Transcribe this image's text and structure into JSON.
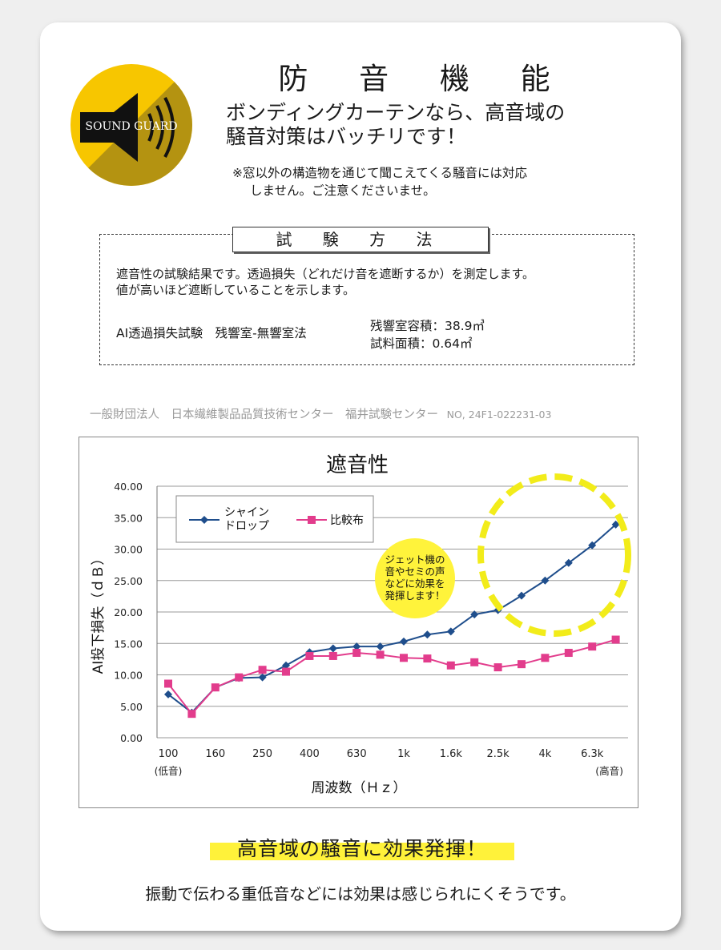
{
  "badge": {
    "text": "SOUND GUARD",
    "color": "#f7c600"
  },
  "header": {
    "title": "防 音 機 能",
    "lead_line1": "ボンディングカーテンなら、高音域の",
    "lead_line2": "騒音対策はバッチリです！",
    "note_line1": "※窓以外の構造物を通じて聞こえてくる騒音には対応",
    "note_line2": "しません。ご注意くださいませ。"
  },
  "method": {
    "label": "試 験 方 法",
    "desc_line1": "遮音性の試験結果です。透過損失（どれだけ音を遮断するか）を測定します。",
    "desc_line2": "値が高いほど遮断していることを示します。",
    "test_name": "AI透過損失試験　残響室-無響室法",
    "spec_line1": "残響室容積：38.9㎥",
    "spec_line2": "試料面積：0.64㎡"
  },
  "organization": {
    "name": "一般財団法人　日本繊維製品品質技術センター　福井試験センター",
    "number": "NO, 24F1-022231-03"
  },
  "chart_data": {
    "type": "line",
    "title": "遮音性",
    "ylabel": "AI投下損失（ｄＢ）",
    "xlabel": "周波数（Ｈｚ）",
    "ylim": [
      0,
      40
    ],
    "yticks": [
      "0.00",
      "5.00",
      "10.00",
      "15.00",
      "20.00",
      "25.00",
      "30.00",
      "35.00",
      "40.00"
    ],
    "x": [
      "100",
      "125",
      "160",
      "200",
      "250",
      "315",
      "400",
      "500",
      "630",
      "800",
      "1k",
      "1.25k",
      "1.6k",
      "2k",
      "2.5k",
      "3.15k",
      "4k",
      "5k",
      "6.3k",
      "8k"
    ],
    "xtick_labels": [
      "100",
      "160",
      "250",
      "400",
      "630",
      "1k",
      "1.6k",
      "2.5k",
      "4k",
      "6.3k"
    ],
    "xtick_indices": [
      0,
      2,
      4,
      6,
      8,
      10,
      12,
      14,
      16,
      18
    ],
    "x_low_label": "(低音)",
    "x_high_label": "(高音)",
    "grid": true,
    "legend_position": "top-left",
    "series": [
      {
        "name": "シャイン\nドロップ",
        "color": "#1f4e8c",
        "marker": "diamond",
        "values": [
          6.9,
          4.0,
          8.0,
          9.5,
          9.6,
          11.5,
          13.6,
          14.2,
          14.5,
          14.5,
          15.3,
          16.4,
          16.9,
          19.6,
          20.3,
          22.6,
          25.0,
          27.8,
          30.6,
          33.9
        ]
      },
      {
        "name": "比較布",
        "color": "#e23c8c",
        "marker": "square",
        "values": [
          8.6,
          3.8,
          8.0,
          9.6,
          10.8,
          10.5,
          13.0,
          13.0,
          13.5,
          13.2,
          12.7,
          12.6,
          11.5,
          12.0,
          11.2,
          11.7,
          12.7,
          13.5,
          14.5,
          15.6
        ]
      }
    ],
    "annotation": "ジェット機の\n音やセミの声\nなどに効果を\n発揮します！",
    "annotation_color": "#fff33b"
  },
  "highlight": {
    "text": "高音域の騒音に効果発揮！",
    "color": "#fff23a"
  },
  "footer": {
    "text": "振動で伝わる重低音などには効果は感じられにくそうです。"
  }
}
